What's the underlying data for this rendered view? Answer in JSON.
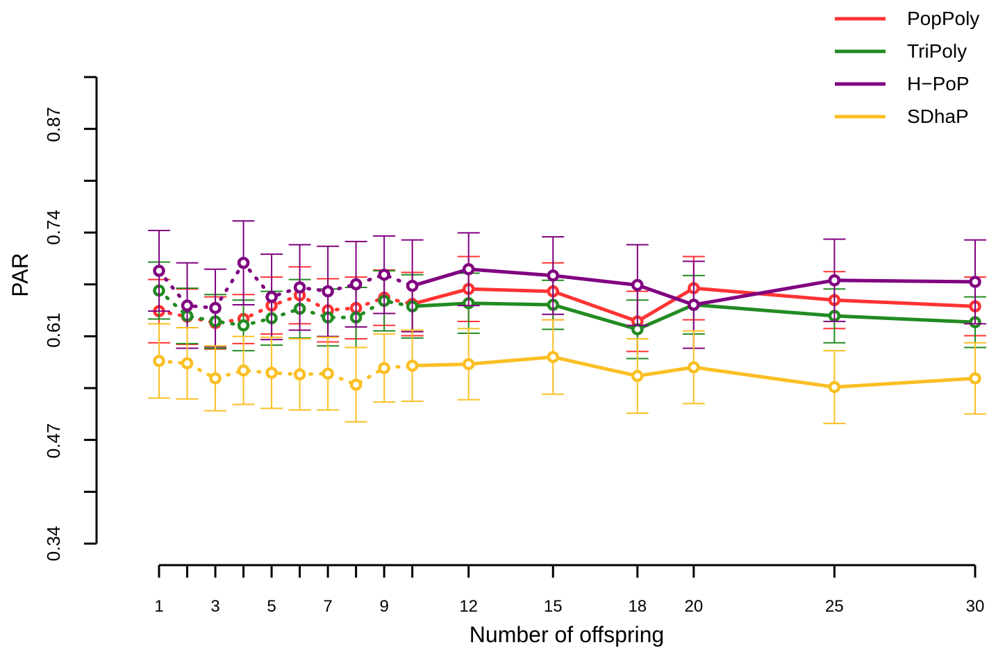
{
  "chart_data": {
    "type": "line",
    "title": "",
    "xlabel": "Number of offspring",
    "ylabel": "PAR",
    "x": [
      1,
      2,
      3,
      4,
      5,
      6,
      7,
      8,
      9,
      10,
      12,
      15,
      18,
      20,
      25,
      30
    ],
    "x_tick_labels": [
      "1",
      "3",
      "5",
      "7",
      "9",
      "12",
      "15",
      "18",
      "20",
      "25",
      "30"
    ],
    "x_tick_label_values": [
      1,
      3,
      5,
      7,
      9,
      12,
      15,
      18,
      20,
      25,
      30
    ],
    "y_ticks": [
      "0.34",
      "0.47",
      "0.61",
      "0.74",
      "0.87"
    ],
    "y_tick_values": [
      0.34,
      0.47,
      0.61,
      0.74,
      0.87
    ],
    "ylim": [
      0.34,
      0.93
    ],
    "grid": false,
    "legend_position": "top-right",
    "dotted_until_x": 10,
    "series": [
      {
        "name": "PopPoly",
        "color": "#FF3333",
        "values": [
          0.634,
          0.627,
          0.619,
          0.624,
          0.641,
          0.654,
          0.635,
          0.638,
          0.651,
          0.643,
          0.662,
          0.659,
          0.621,
          0.663,
          0.648,
          0.64
        ],
        "error": [
          0.04,
          0.035,
          0.033,
          0.031,
          0.036,
          0.036,
          0.04,
          0.039,
          0.035,
          0.04,
          0.041,
          0.036,
          0.038,
          0.04,
          0.036,
          0.037
        ]
      },
      {
        "name": "TriPoly",
        "color": "#228B22",
        "values": [
          0.66,
          0.628,
          0.621,
          0.616,
          0.625,
          0.637,
          0.626,
          0.626,
          0.647,
          0.64,
          0.644,
          0.642,
          0.611,
          0.642,
          0.628,
          0.62
        ],
        "error": [
          0.036,
          0.035,
          0.034,
          0.032,
          0.034,
          0.037,
          0.036,
          0.038,
          0.038,
          0.04,
          0.038,
          0.031,
          0.037,
          0.037,
          0.034,
          0.032
        ]
      },
      {
        "name": "H−PoP",
        "color": "#800080",
        "values": [
          0.685,
          0.641,
          0.638,
          0.695,
          0.652,
          0.664,
          0.659,
          0.668,
          0.68,
          0.666,
          0.687,
          0.679,
          0.667,
          0.642,
          0.673,
          0.671
        ],
        "error": [
          0.051,
          0.054,
          0.049,
          0.053,
          0.054,
          0.054,
          0.057,
          0.054,
          0.049,
          0.058,
          0.046,
          0.049,
          0.051,
          0.055,
          0.052,
          0.053
        ]
      },
      {
        "name": "SDhaP",
        "color": "#FBBF24",
        "values": [
          0.571,
          0.568,
          0.549,
          0.559,
          0.556,
          0.554,
          0.555,
          0.541,
          0.562,
          0.565,
          0.567,
          0.576,
          0.552,
          0.563,
          0.538,
          0.549
        ],
        "error": [
          0.047,
          0.045,
          0.041,
          0.043,
          0.045,
          0.045,
          0.046,
          0.047,
          0.043,
          0.045,
          0.045,
          0.047,
          0.047,
          0.046,
          0.046,
          0.045
        ]
      }
    ]
  }
}
